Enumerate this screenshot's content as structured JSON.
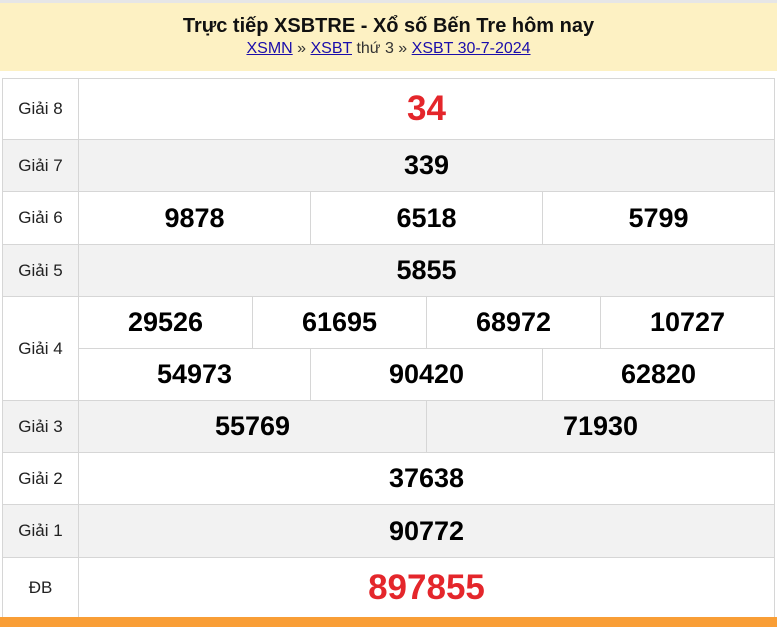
{
  "header": {
    "title": "Trực tiếp XSBTRE - Xổ số Bến Tre hôm nay",
    "breadcrumb": [
      {
        "label": "XSMN",
        "link": true
      },
      {
        "label": " » ",
        "link": false
      },
      {
        "label": "XSBT",
        "link": true
      },
      {
        "label": " thứ 3 » ",
        "link": false
      },
      {
        "label": "XSBT 30-7-2024",
        "link": true
      }
    ]
  },
  "colors": {
    "header_bg": "#fdf1c3",
    "highlight": "#e4262b",
    "footer": "#f99e36",
    "alt_row": "#f2f2f2"
  },
  "prizes": [
    {
      "label": "Giải 8",
      "rows": [
        [
          "34"
        ]
      ],
      "highlight": true
    },
    {
      "label": "Giải 7",
      "rows": [
        [
          "339"
        ]
      ]
    },
    {
      "label": "Giải 6",
      "rows": [
        [
          "9878",
          "6518",
          "5799"
        ]
      ]
    },
    {
      "label": "Giải 5",
      "rows": [
        [
          "5855"
        ]
      ]
    },
    {
      "label": "Giải 4",
      "rows": [
        [
          "29526",
          "61695",
          "68972",
          "10727"
        ],
        [
          "54973",
          "90420",
          "62820"
        ]
      ]
    },
    {
      "label": "Giải 3",
      "rows": [
        [
          "55769",
          "71930"
        ]
      ]
    },
    {
      "label": "Giải 2",
      "rows": [
        [
          "37638"
        ]
      ]
    },
    {
      "label": "Giải 1",
      "rows": [
        [
          "90772"
        ]
      ]
    },
    {
      "label": "ĐB",
      "rows": [
        [
          "897855"
        ]
      ],
      "highlight": true
    }
  ]
}
